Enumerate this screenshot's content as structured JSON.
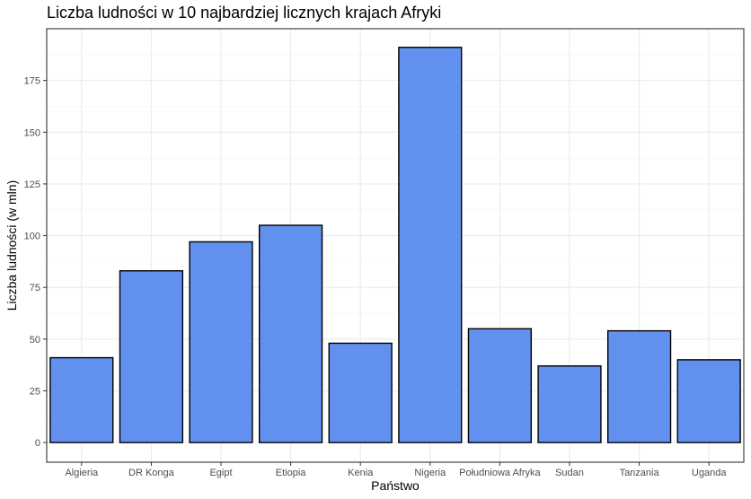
{
  "chart_data": {
    "type": "bar",
    "title": "Liczba ludności w 10 najbardziej licznych krajach Afryki",
    "xlabel": "Państwo",
    "ylabel": "Liczba ludności (w mln)",
    "categories": [
      "Algieria",
      "DR Konga",
      "Egipt",
      "Etiopia",
      "Kenia",
      "Nigeria",
      "Południowa Afryka",
      "Sudan",
      "Tanzania",
      "Uganda"
    ],
    "values": [
      41,
      83,
      97,
      105,
      48,
      191,
      55,
      37,
      54,
      40
    ],
    "ylim": [
      -9.5,
      200
    ],
    "yticks": [
      0,
      25,
      50,
      75,
      100,
      125,
      150,
      175
    ],
    "ytick_labels": [
      "0",
      "25",
      "50",
      "75",
      "100",
      "125",
      "150",
      "175"
    ],
    "grid": true,
    "legend": "none",
    "colors": {
      "bar_fill": "#6190ee",
      "bar_stroke": "#000000",
      "grid_major": "#ebebeb",
      "grid_minor": "#f4f4f4",
      "panel_border": "#333333"
    }
  }
}
